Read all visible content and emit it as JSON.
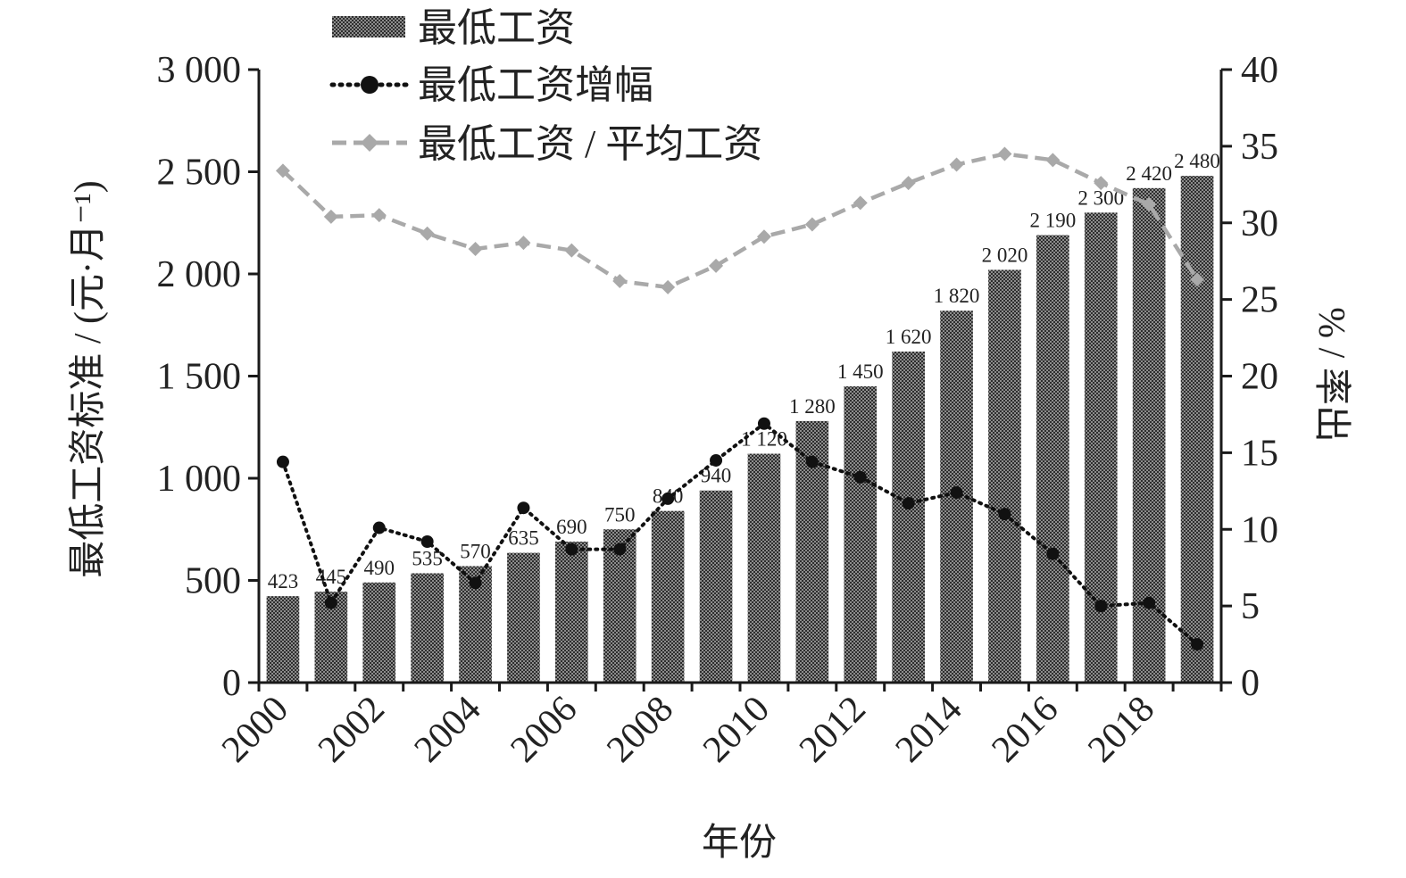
{
  "chart_data": {
    "type": "bar+line",
    "categories": [
      "2000",
      "2001",
      "2002",
      "2003",
      "2004",
      "2005",
      "2006",
      "2007",
      "2008",
      "2009",
      "2010",
      "2011",
      "2012",
      "2013",
      "2014",
      "2015",
      "2016",
      "2017",
      "2018",
      "2019"
    ],
    "x_tick_labels": [
      "2000",
      "2002",
      "2004",
      "2006",
      "2008",
      "2010",
      "2012",
      "2014",
      "2016",
      "2018"
    ],
    "series": [
      {
        "name": "最低工资",
        "type": "bar",
        "axis": "left",
        "values": [
          423,
          445,
          490,
          535,
          570,
          635,
          690,
          750,
          840,
          940,
          1120,
          1280,
          1450,
          1620,
          1820,
          2020,
          2190,
          2300,
          2420,
          2480
        ],
        "labels": [
          "423",
          "445",
          "490",
          "535",
          "570",
          "635",
          "690",
          "750",
          "840",
          "940",
          "1 120",
          "1 280",
          "1 450",
          "1 620",
          "1 820",
          "2 020",
          "2 190",
          "2 300",
          "2 420",
          "2 480"
        ]
      },
      {
        "name": "最低工资增幅",
        "type": "line",
        "axis": "right",
        "style": "dotted",
        "marker": "circle",
        "values": [
          14.4,
          5.2,
          10.1,
          9.2,
          6.5,
          11.4,
          8.7,
          8.7,
          12.0,
          14.5,
          16.9,
          14.4,
          13.4,
          11.7,
          12.4,
          11.0,
          8.4,
          5.0,
          5.2,
          2.5
        ]
      },
      {
        "name": "最低工资 / 平均工资",
        "type": "line",
        "axis": "right",
        "style": "dashed",
        "marker": "diamond",
        "values": [
          33.4,
          30.4,
          30.5,
          29.3,
          28.3,
          28.7,
          28.2,
          26.2,
          25.8,
          27.2,
          29.1,
          29.9,
          31.3,
          32.6,
          33.8,
          34.5,
          34.1,
          32.6,
          31.2,
          26.3
        ]
      }
    ],
    "y_left": {
      "label": "最低工资标准 / (元·月⁻¹)",
      "ylim": [
        0,
        3000
      ],
      "ticks": [
        0,
        500,
        1000,
        1500,
        2000,
        2500,
        3000
      ],
      "tick_labels": [
        "0",
        "500",
        "1 000",
        "1 500",
        "2 000",
        "2 500",
        "3 000"
      ]
    },
    "y_right": {
      "label": "% / 率出",
      "ylim": [
        0,
        40
      ],
      "ticks": [
        0,
        5,
        10,
        15,
        20,
        25,
        30,
        35,
        40
      ],
      "tick_labels": [
        "0",
        "5",
        "10",
        "15",
        "20",
        "25",
        "30",
        "35",
        "40"
      ]
    },
    "xlabel": "年份",
    "legend_position": "top-left",
    "grid": false,
    "colors": {
      "bar": "#6b6b6b",
      "growth_line": "#111111",
      "ratio_line": "#a9a9a9",
      "axis": "#1a1a1a"
    }
  }
}
